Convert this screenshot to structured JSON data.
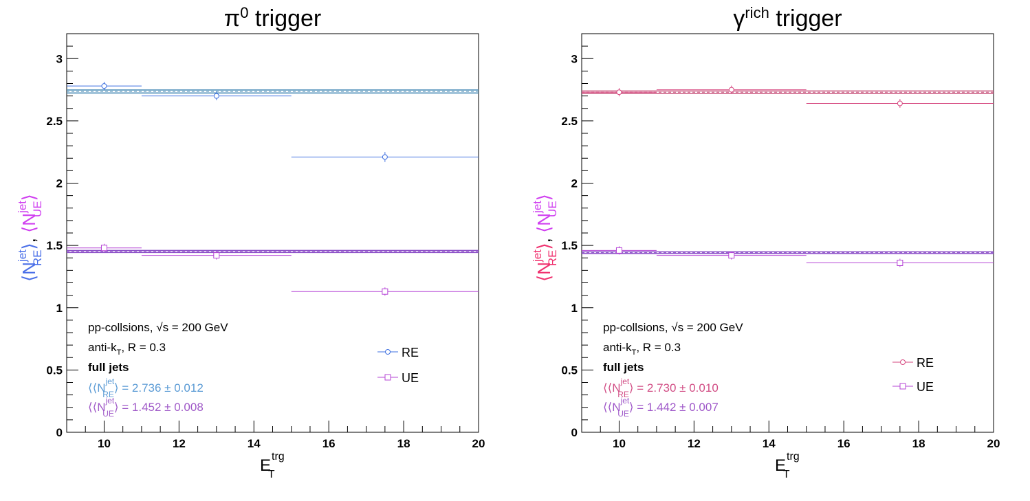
{
  "panels": [
    {
      "title_main": "π",
      "title_sup": "0",
      "title_rest": " trigger",
      "re_color": "#3d6fe0",
      "ue_color": "#b644d6",
      "ylabel_re_color": "#4a6fe8",
      "ylabel_ue_color": "#d040f0",
      "mean_re_text_color": "#5b9bd5",
      "mean_ue_text_color": "#a05ac8",
      "mean_re_line_color": "#4f8fb8",
      "mean_ue_line_color": "#8e52c8",
      "mean_re_text": "⟩ = 2.736 ± 0.012",
      "mean_ue_text": "⟩ = 1.452 ± 0.008",
      "legend_slot": "upper"
    },
    {
      "title_main": "γ",
      "title_sup": "rich",
      "title_rest": " trigger",
      "re_color": "#d6477f",
      "ue_color": "#b644d6",
      "ylabel_re_color": "#f0306e",
      "ylabel_ue_color": "#d040f0",
      "mean_re_text_color": "#d24f86",
      "mean_ue_text_color": "#9f58c9",
      "mean_re_line_color": "#c9567e",
      "mean_ue_line_color": "#8e52c8",
      "mean_re_text": "⟩ = 2.730 ± 0.010",
      "mean_ue_text": "⟩ = 1.442 ± 0.007",
      "legend_slot": "lower"
    }
  ],
  "common": {
    "ylabel_n": "N",
    "ylabel_sup": "jet",
    "ylabel_sub_re": "RE",
    "ylabel_sub_ue": "UE",
    "xlabel_main": "E",
    "xlabel_sup": "trg",
    "xlabel_sub": "T",
    "info_line1_a": "pp-collsions, ",
    "info_line1_b": "s",
    "info_line1_c": " = 200 GeV",
    "info_line2_a": "anti-k",
    "info_line2_sub": "T",
    "info_line2_b": ", R = 0.3",
    "info_line3": "full jets",
    "mean_open": "⟨⟨N",
    "legend_re": "RE",
    "legend_ue": "UE"
  },
  "chart_data": [
    {
      "type": "scatter",
      "title": "π0 trigger",
      "xlabel": "E_T^trg",
      "ylabel": "⟨N_RE^jet⟩, ⟨N_UE^jet⟩",
      "xlim": [
        9,
        20
      ],
      "ylim": [
        0,
        3.2
      ],
      "x_ticks": [
        10,
        12,
        14,
        16,
        18,
        20
      ],
      "y_ticks": [
        0,
        0.5,
        1,
        1.5,
        2,
        2.5,
        3
      ],
      "series": [
        {
          "name": "RE",
          "marker": "open-circle",
          "points": [
            {
              "x": 10,
              "xlo": 9,
              "xhi": 11,
              "y": 2.78,
              "yerr": 0.015
            },
            {
              "x": 13,
              "xlo": 11,
              "xhi": 15,
              "y": 2.7,
              "yerr": 0.02
            },
            {
              "x": 17.5,
              "xlo": 15,
              "xhi": 20,
              "y": 2.21,
              "yerr": 0.04
            }
          ],
          "mean": 2.736,
          "mean_err": 0.012
        },
        {
          "name": "UE",
          "marker": "open-square",
          "points": [
            {
              "x": 10,
              "xlo": 9,
              "xhi": 11,
              "y": 1.48,
              "yerr": 0.01
            },
            {
              "x": 13,
              "xlo": 11,
              "xhi": 15,
              "y": 1.42,
              "yerr": 0.015
            },
            {
              "x": 17.5,
              "xlo": 15,
              "xhi": 20,
              "y": 1.13,
              "yerr": 0.03
            }
          ],
          "mean": 1.452,
          "mean_err": 0.008
        }
      ],
      "legend": "lower-right"
    },
    {
      "type": "scatter",
      "title": "γrich trigger",
      "xlabel": "E_T^trg",
      "ylabel": "⟨N_RE^jet⟩, ⟨N_UE^jet⟩",
      "xlim": [
        9,
        20
      ],
      "ylim": [
        0,
        3.2
      ],
      "x_ticks": [
        10,
        12,
        14,
        16,
        18,
        20
      ],
      "y_ticks": [
        0,
        0.5,
        1,
        1.5,
        2,
        2.5,
        3
      ],
      "series": [
        {
          "name": "RE",
          "marker": "open-circle",
          "points": [
            {
              "x": 10,
              "xlo": 9,
              "xhi": 11,
              "y": 2.73,
              "yerr": 0.01
            },
            {
              "x": 13,
              "xlo": 11,
              "xhi": 15,
              "y": 2.75,
              "yerr": 0.015
            },
            {
              "x": 17.5,
              "xlo": 15,
              "xhi": 20,
              "y": 2.64,
              "yerr": 0.035
            }
          ],
          "mean": 2.73,
          "mean_err": 0.01
        },
        {
          "name": "UE",
          "marker": "open-square",
          "points": [
            {
              "x": 10,
              "xlo": 9,
              "xhi": 11,
              "y": 1.46,
              "yerr": 0.008
            },
            {
              "x": 13,
              "xlo": 11,
              "xhi": 15,
              "y": 1.42,
              "yerr": 0.012
            },
            {
              "x": 17.5,
              "xlo": 15,
              "xhi": 20,
              "y": 1.36,
              "yerr": 0.02
            }
          ],
          "mean": 1.442,
          "mean_err": 0.007
        }
      ],
      "legend": "lower-right"
    }
  ]
}
